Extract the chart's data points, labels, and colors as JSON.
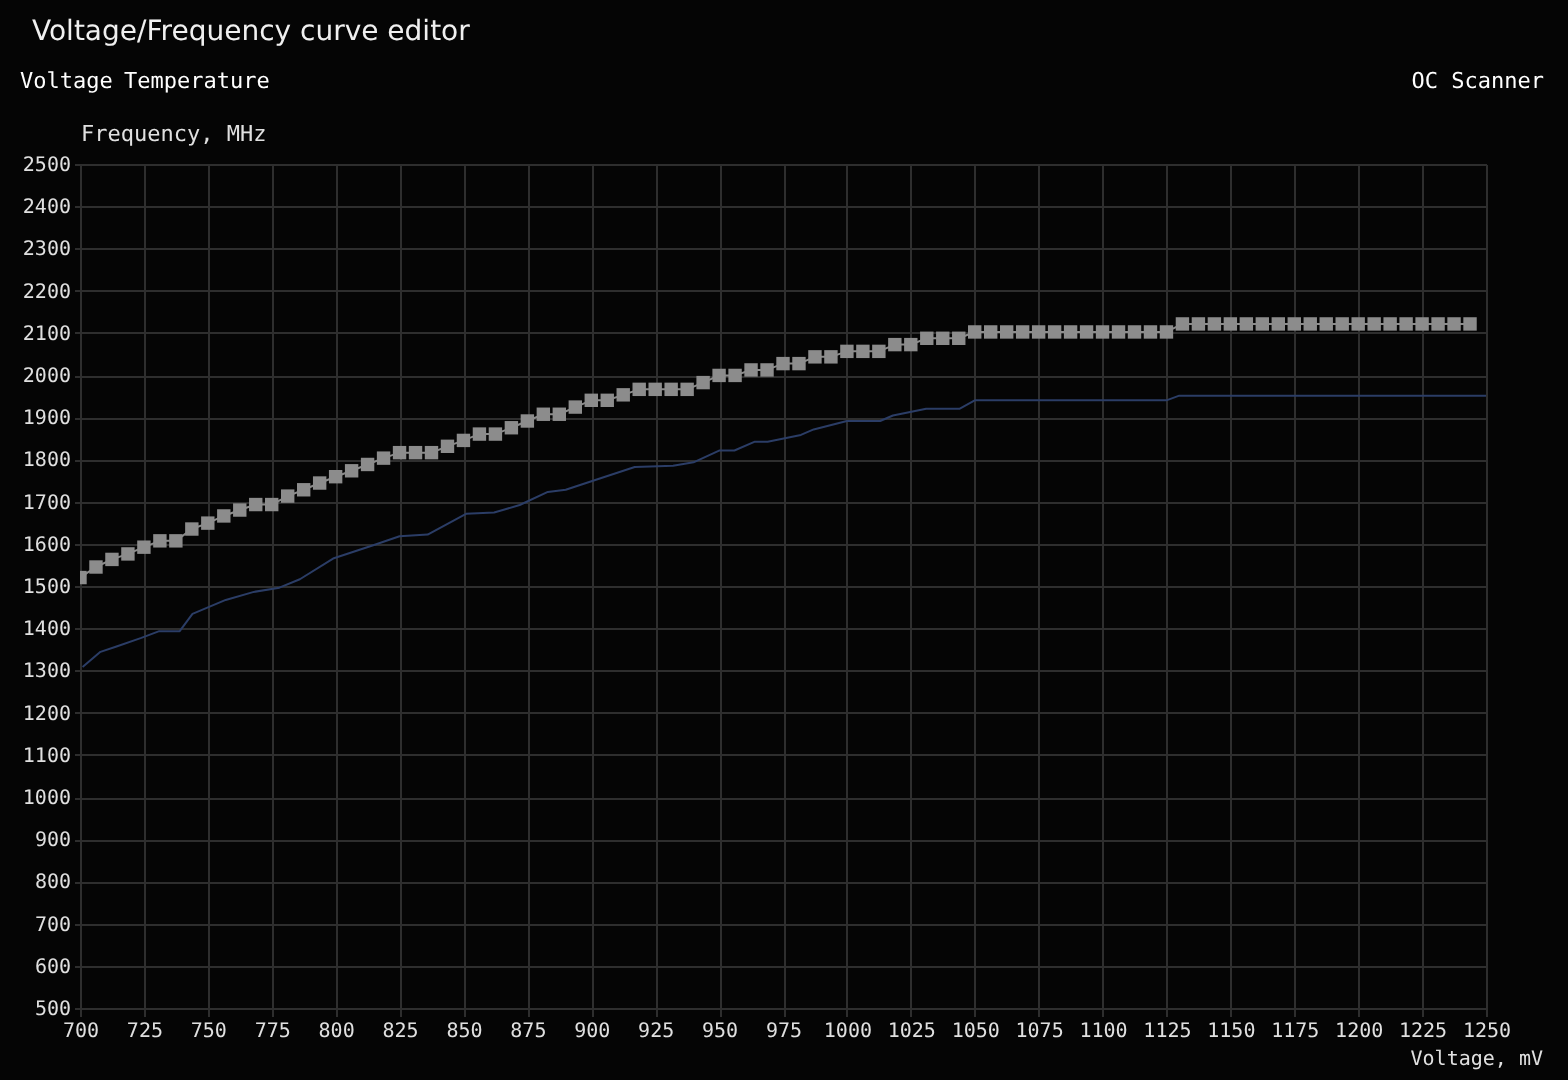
{
  "chart_data": {
    "type": "line",
    "title": "Voltage/Frequency curve editor",
    "xlabel": "Voltage, mV",
    "ylabel": "Frequency, MHz",
    "annotations": [
      "Voltage",
      "Temperature",
      "OC Scanner"
    ],
    "xlim": [
      700,
      1250
    ],
    "xticks": [
      700,
      725,
      750,
      775,
      800,
      825,
      850,
      875,
      900,
      925,
      950,
      975,
      1000,
      1025,
      1050,
      1075,
      1100,
      1125,
      1150,
      1175,
      1200,
      1225,
      1250
    ],
    "ylim": [
      500,
      2500
    ],
    "yticks": [
      500,
      600,
      700,
      800,
      900,
      1000,
      1100,
      1200,
      1300,
      1400,
      1500,
      1600,
      1700,
      1800,
      1900,
      2000,
      2100,
      2200,
      2300,
      2400,
      2500
    ],
    "grid": true,
    "series": [
      {
        "color": "#8c8c8c",
        "marker": "square",
        "x": [
          700,
          706.25,
          712.5,
          718.75,
          725,
          731.25,
          737.5,
          743.75,
          750,
          756.25,
          762.5,
          768.75,
          775,
          781.25,
          787.5,
          793.75,
          800,
          806.25,
          812.5,
          818.75,
          825,
          831.25,
          837.5,
          843.75,
          850,
          856.25,
          862.5,
          868.75,
          875,
          881.25,
          887.5,
          893.75,
          900,
          906.25,
          912.5,
          918.75,
          925,
          931.25,
          937.5,
          943.75,
          950,
          956.25,
          962.5,
          968.75,
          975,
          981.25,
          987.5,
          993.75,
          1000,
          1006.25,
          1012.5,
          1018.75,
          1025,
          1031.25,
          1037.5,
          1043.75,
          1050,
          1056.25,
          1062.5,
          1068.75,
          1075,
          1081.25,
          1087.5,
          1093.75,
          1100,
          1106.25,
          1112.5,
          1118.75,
          1125,
          1131.25,
          1137.5,
          1143.75,
          1150,
          1156.25,
          1162.5,
          1168.75,
          1175,
          1181.25,
          1187.5,
          1193.75,
          1200,
          1206.25,
          1212.5,
          1218.75,
          1225,
          1231.25,
          1237.5,
          1243.75
        ],
        "values": [
          1520,
          1545,
          1563,
          1576,
          1592,
          1607,
          1607,
          1635,
          1649,
          1666,
          1680,
          1693,
          1693,
          1713,
          1728,
          1744,
          1759,
          1773,
          1788,
          1803,
          1816,
          1816,
          1816,
          1831,
          1845,
          1860,
          1860,
          1875,
          1891,
          1907,
          1907,
          1924,
          1940,
          1940,
          1953,
          1966,
          1966,
          1966,
          1966,
          1982,
          1999,
          1999,
          2012,
          2012,
          2027,
          2027,
          2043,
          2043,
          2056,
          2056,
          2056,
          2072,
          2072,
          2087,
          2087,
          2087,
          2102,
          2102,
          2102,
          2102,
          2102,
          2102,
          2102,
          2102,
          2102,
          2102,
          2102,
          2102,
          2102,
          2121,
          2121,
          2121,
          2121,
          2121,
          2121,
          2121,
          2121,
          2121,
          2121,
          2121,
          2121,
          2121,
          2121,
          2121,
          2121,
          2121,
          2121,
          2121
        ]
      },
      {
        "color": "#2b3d66",
        "marker": "none",
        "x": [
          701,
          708,
          714,
          724,
          731,
          739,
          744,
          757,
          768,
          778,
          786,
          799,
          815,
          825,
          836,
          851,
          862,
          872,
          883,
          890,
          898,
          917,
          932,
          940,
          950,
          956,
          964,
          969,
          982,
          987,
          1000,
          1013,
          1018,
          1031,
          1044,
          1050,
          1125,
          1130,
          1250
        ],
        "values": [
          1308,
          1344,
          1356,
          1377,
          1393,
          1393,
          1434,
          1467,
          1486,
          1496,
          1516,
          1565,
          1597,
          1618,
          1622,
          1671,
          1674,
          1692,
          1723,
          1728,
          1744,
          1782,
          1785,
          1793,
          1821,
          1821,
          1842,
          1842,
          1858,
          1871,
          1891,
          1891,
          1904,
          1920,
          1920,
          1940,
          1940,
          1951,
          1951
        ]
      }
    ]
  }
}
